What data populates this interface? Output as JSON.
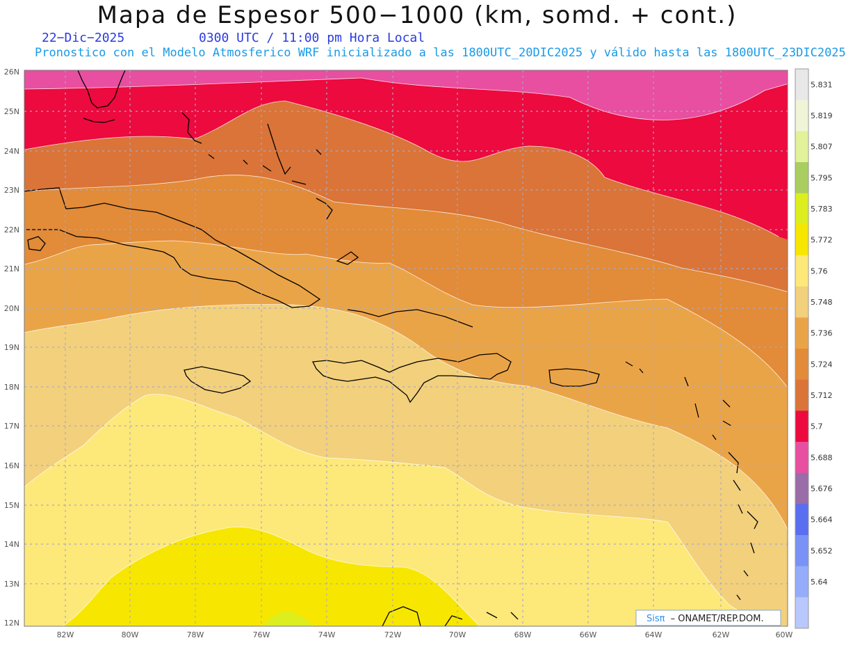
{
  "title": "Mapa de Espesor 500−1000 (km, somd. + cont.)",
  "date": "22−Dic−2025",
  "time": "0300 UTC / 11:00 pm Hora Local",
  "subtitle": "Pronostico con el Modelo Atmosferico WRF inicializado a las 1800UTC_20DIC2025 y válido hasta las  1800UTC_23DIC2025",
  "credit": {
    "sis": "Sisπ",
    "rest": "– ONAMET/REP.DOM."
  },
  "lat_labels": [
    "26N",
    "25N",
    "24N",
    "23N",
    "22N",
    "21N",
    "20N",
    "19N",
    "18N",
    "17N",
    "16N",
    "15N",
    "14N",
    "13N",
    "12N"
  ],
  "lon_labels": [
    "82W",
    "80W",
    "78W",
    "76W",
    "74W",
    "72W",
    "70W",
    "68W",
    "66W",
    "64W",
    "62W",
    "60W"
  ],
  "colorbar": {
    "labels": [
      "5.831",
      "5.819",
      "5.807",
      "5.795",
      "5.783",
      "5.772",
      "5.76",
      "5.748",
      "5.736",
      "5.724",
      "5.712",
      "5.7",
      "5.688",
      "5.676",
      "5.664",
      "5.652",
      "5.64"
    ],
    "colors": [
      "#e8e8e8",
      "#f1f5d8",
      "#e2f29a",
      "#aacd60",
      "#dcee1e",
      "#f7e600",
      "#fde87a",
      "#f2d07c",
      "#eaa448",
      "#e28b38",
      "#da7438",
      "#ec0a3e",
      "#e84fa0",
      "#9a6ca8",
      "#5a6ef2",
      "#7a92f6",
      "#94acfa",
      "#b8c8fc"
    ]
  },
  "map": {
    "colors": {
      "pink": "#e84fa0",
      "red": "#ec0a3e",
      "dark_orange": "#da7438",
      "orange": "#e28b38",
      "light_orange": "#eaa448",
      "tan": "#f2d07c",
      "light_yellow": "#fde87a",
      "yellow": "#f7e600",
      "yellow_green": "#dcee1e"
    }
  }
}
